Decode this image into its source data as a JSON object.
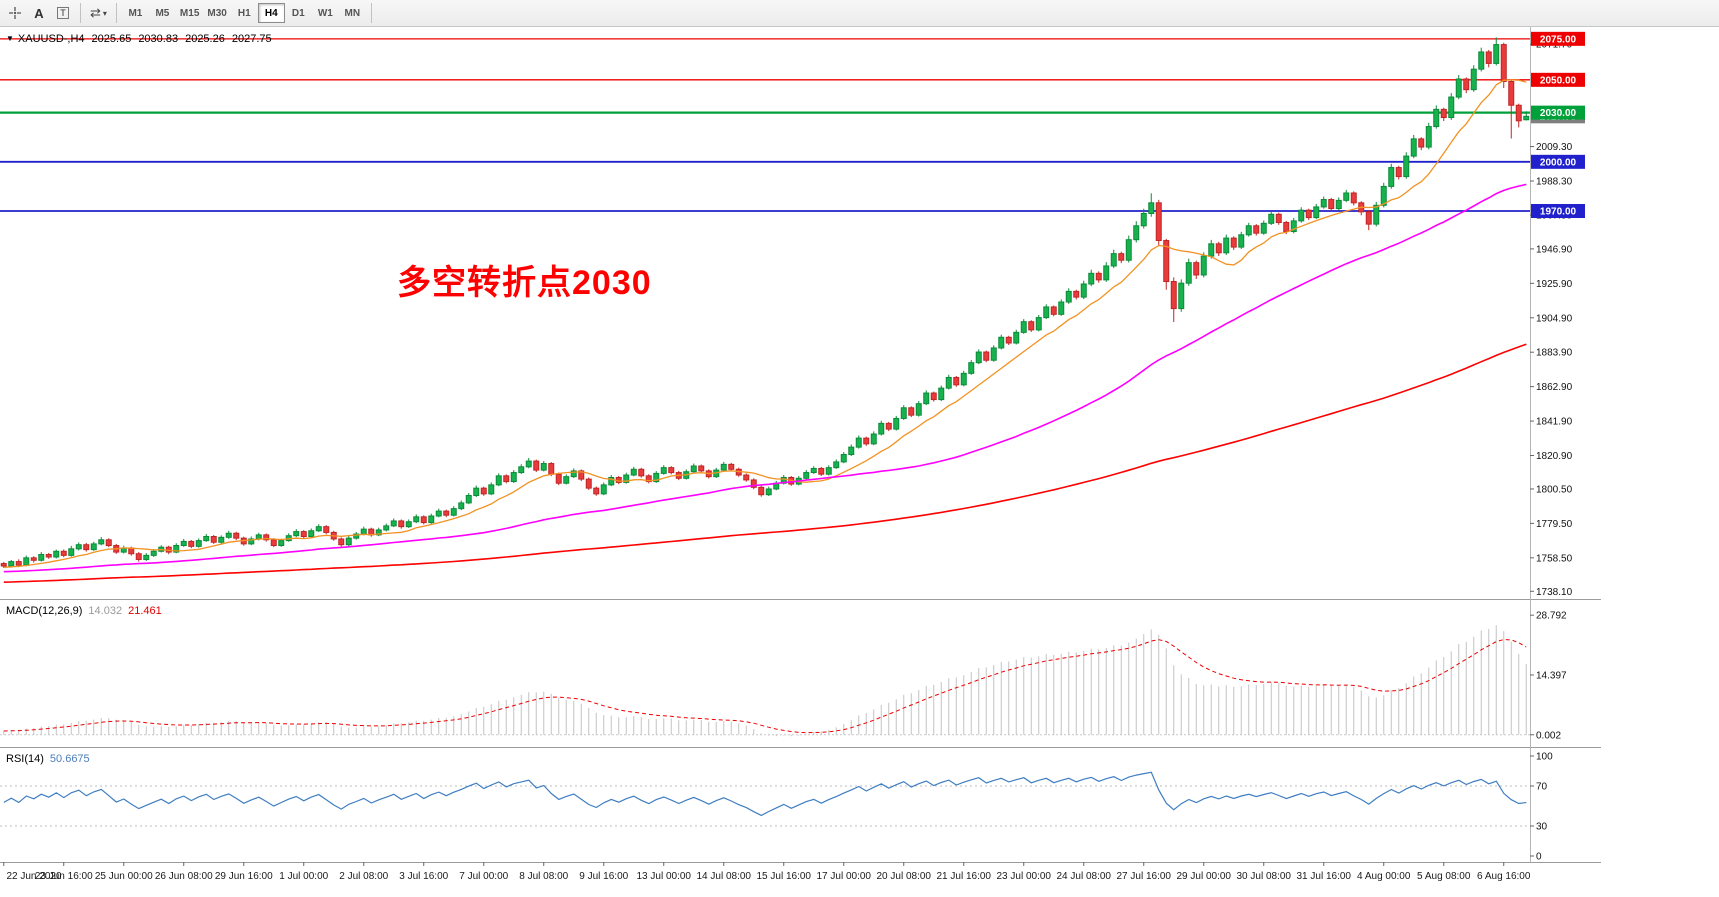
{
  "toolbar": {
    "tools": {
      "text_label": "A",
      "textbox_label": "T",
      "cycles_glyph": "⇄",
      "caret_glyph": "▾"
    },
    "timeframes": [
      "M1",
      "M5",
      "M15",
      "M30",
      "H1",
      "H4",
      "D1",
      "W1",
      "MN"
    ],
    "active_timeframe": "H4"
  },
  "chart": {
    "menu_arrow_glyph": "▼",
    "symbol_label": "XAUUSD-,H4",
    "ohlc": {
      "open": "2025.65",
      "high": "2030.83",
      "low": "2025.26",
      "close": "2027.75"
    },
    "annotation": {
      "text": "多空转折点2030",
      "color": "#ff0000"
    }
  },
  "indicators": {
    "macd": {
      "label": "MACD(12,26,9)",
      "value_main": "14.032",
      "value_signal": "21.461",
      "value_main_color": "#9a9a9a",
      "value_signal_color": "#e00000",
      "ticks": [
        "28.792",
        "14.397",
        "0.002"
      ]
    },
    "rsi": {
      "label": "RSI(14)",
      "value": "50.6675",
      "value_color": "#4a7ebb",
      "ticks": [
        "100",
        "70",
        "30",
        "0"
      ],
      "levels": [
        70,
        30
      ]
    }
  },
  "chart_data": {
    "type": "candlestick",
    "title": "XAUUSD-,H4",
    "symbol": "XAUUSD-",
    "timeframe": "H4",
    "price_axis": {
      "min": 1734,
      "max": 2081,
      "ticks": [
        "2071.70",
        "2009.30",
        "1988.30",
        "1967.50",
        "1946.90",
        "1925.90",
        "1904.90",
        "1883.90",
        "1862.90",
        "1841.90",
        "1820.90",
        "1800.50",
        "1779.50",
        "1758.50",
        "1738.10"
      ]
    },
    "time_labels": [
      "22 Jun 2020",
      "23 Jun 16:00",
      "25 Jun 00:00",
      "26 Jun 08:00",
      "29 Jun 16:00",
      "1 Jul 00:00",
      "2 Jul 08:00",
      "3 Jul 16:00",
      "7 Jul 00:00",
      "8 Jul 08:00",
      "9 Jul 16:00",
      "13 Jul 00:00",
      "14 Jul 08:00",
      "15 Jul 16:00",
      "17 Jul 00:00",
      "20 Jul 08:00",
      "21 Jul 16:00",
      "23 Jul 00:00",
      "24 Jul 08:00",
      "27 Jul 16:00",
      "29 Jul 00:00",
      "30 Jul 08:00",
      "31 Jul 16:00",
      "4 Aug 00:00",
      "5 Aug 08:00",
      "6 Aug 16:00"
    ],
    "bars_per_label": 8,
    "horizontal_lines": [
      {
        "price": 2075.0,
        "label": "2075.00",
        "color": "#ee0000",
        "width": 1.3
      },
      {
        "price": 2050.0,
        "label": "2050.00",
        "color": "#ee0000",
        "width": 1.3
      },
      {
        "price": 2030.0,
        "label": "2030.00",
        "color": "#00a13a",
        "width": 2.2
      },
      {
        "price": 2000.0,
        "label": "2000.00",
        "color": "#2020cc",
        "width": 1.8
      },
      {
        "price": 1970.0,
        "label": "1970.00",
        "color": "#2020cc",
        "width": 1.8
      }
    ],
    "current_price": "2027.75",
    "moving_averages": [
      {
        "period": 10,
        "color": "#f29222",
        "width": 1.3
      },
      {
        "period": 50,
        "color": "#ff00ff",
        "width": 1.6
      },
      {
        "period": 150,
        "color": "#ff0000",
        "width": 1.6
      }
    ],
    "history_seed": {
      "start": 1734,
      "end": 1753,
      "bars": 150,
      "jitter": 1.1
    },
    "colors": {
      "up_fill": "#17b24d",
      "up_stroke": "#0b8a39",
      "down_fill": "#e83c3c",
      "down_stroke": "#c02424",
      "macd_hist": "#c2c2c2",
      "macd_signal": "#ee0000",
      "rsi_line": "#3f7ec1",
      "bid_box": "#7f7f7f",
      "axis_text": "#111111"
    },
    "candles": [
      [
        1755.0,
        1756.0,
        1752.3,
        1753.5
      ],
      [
        1753.5,
        1757.2,
        1752.5,
        1756.2
      ],
      [
        1756.2,
        1757.6,
        1752.8,
        1754.0
      ],
      [
        1754.0,
        1759.9,
        1753.3,
        1758.5
      ],
      [
        1758.5,
        1759.5,
        1755.6,
        1757.0
      ],
      [
        1757.0,
        1762.0,
        1756.2,
        1760.5
      ],
      [
        1760.5,
        1761.5,
        1757.9,
        1759.0
      ],
      [
        1759.0,
        1763.5,
        1758.1,
        1762.5
      ],
      [
        1762.5,
        1763.6,
        1758.9,
        1760.0
      ],
      [
        1760.0,
        1765.8,
        1759.2,
        1764.0
      ],
      [
        1764.0,
        1767.9,
        1763.0,
        1766.5
      ],
      [
        1766.5,
        1767.6,
        1762.3,
        1763.5
      ],
      [
        1763.5,
        1768.3,
        1762.8,
        1767.0
      ],
      [
        1767.0,
        1771.2,
        1766.1,
        1769.5
      ],
      [
        1769.5,
        1770.4,
        1765.0,
        1766.0
      ],
      [
        1766.0,
        1767.0,
        1760.9,
        1762.0
      ],
      [
        1762.0,
        1765.9,
        1761.2,
        1764.5
      ],
      [
        1764.5,
        1765.3,
        1759.8,
        1761.0
      ],
      [
        1761.0,
        1762.0,
        1756.2,
        1757.5
      ],
      [
        1757.5,
        1761.4,
        1756.6,
        1760.0
      ],
      [
        1760.0,
        1763.9,
        1759.0,
        1762.5
      ],
      [
        1762.5,
        1766.2,
        1761.8,
        1765.0
      ],
      [
        1765.0,
        1765.9,
        1760.7,
        1762.0
      ],
      [
        1762.0,
        1767.4,
        1761.3,
        1766.0
      ],
      [
        1766.0,
        1770.0,
        1765.2,
        1768.5
      ],
      [
        1768.5,
        1769.4,
        1764.4,
        1765.5
      ],
      [
        1765.5,
        1770.3,
        1764.7,
        1769.0
      ],
      [
        1769.0,
        1773.0,
        1768.2,
        1771.5
      ],
      [
        1771.5,
        1772.4,
        1767.0,
        1768.0
      ],
      [
        1768.0,
        1772.2,
        1767.2,
        1771.0
      ],
      [
        1771.0,
        1775.0,
        1770.1,
        1773.5
      ],
      [
        1773.5,
        1774.4,
        1769.3,
        1770.5
      ],
      [
        1770.5,
        1771.4,
        1765.9,
        1767.0
      ],
      [
        1767.0,
        1771.5,
        1766.2,
        1770.0
      ],
      [
        1770.0,
        1773.8,
        1769.1,
        1772.5
      ],
      [
        1772.5,
        1773.4,
        1768.4,
        1769.5
      ],
      [
        1769.5,
        1770.5,
        1765.0,
        1766.0
      ],
      [
        1766.0,
        1770.2,
        1765.2,
        1769.0
      ],
      [
        1769.0,
        1773.5,
        1768.3,
        1772.0
      ],
      [
        1772.0,
        1776.0,
        1771.1,
        1774.5
      ],
      [
        1774.5,
        1775.4,
        1770.3,
        1771.5
      ],
      [
        1771.5,
        1776.4,
        1770.7,
        1775.0
      ],
      [
        1775.0,
        1779.0,
        1774.2,
        1777.5
      ],
      [
        1777.5,
        1778.4,
        1772.9,
        1774.0
      ],
      [
        1774.0,
        1775.0,
        1768.9,
        1770.0
      ],
      [
        1770.0,
        1771.0,
        1765.3,
        1766.5
      ],
      [
        1766.5,
        1771.9,
        1765.7,
        1770.5
      ],
      [
        1770.5,
        1774.3,
        1769.6,
        1773.0
      ],
      [
        1773.0,
        1777.5,
        1772.2,
        1776.0
      ],
      [
        1776.0,
        1776.9,
        1771.4,
        1772.5
      ],
      [
        1772.5,
        1776.9,
        1771.7,
        1775.5
      ],
      [
        1775.5,
        1779.4,
        1774.6,
        1778.0
      ],
      [
        1778.0,
        1782.5,
        1777.2,
        1781.0
      ],
      [
        1781.0,
        1781.9,
        1776.3,
        1777.5
      ],
      [
        1777.5,
        1781.9,
        1776.7,
        1780.5
      ],
      [
        1780.5,
        1785.0,
        1779.6,
        1783.5
      ],
      [
        1783.5,
        1784.4,
        1778.9,
        1780.0
      ],
      [
        1780.0,
        1785.4,
        1779.2,
        1784.0
      ],
      [
        1784.0,
        1788.5,
        1783.2,
        1787.0
      ],
      [
        1787.0,
        1787.9,
        1783.3,
        1784.5
      ],
      [
        1784.5,
        1790.0,
        1783.7,
        1788.5
      ],
      [
        1788.5,
        1793.5,
        1787.6,
        1792.0
      ],
      [
        1792.0,
        1798.0,
        1791.2,
        1796.5
      ],
      [
        1796.5,
        1802.6,
        1795.6,
        1801.0
      ],
      [
        1801.0,
        1801.9,
        1796.3,
        1797.5
      ],
      [
        1797.5,
        1804.5,
        1796.7,
        1803.0
      ],
      [
        1803.0,
        1810.0,
        1802.2,
        1808.5
      ],
      [
        1808.5,
        1809.4,
        1803.9,
        1805.0
      ],
      [
        1805.0,
        1812.0,
        1804.2,
        1810.5
      ],
      [
        1810.5,
        1815.6,
        1809.6,
        1814.0
      ],
      [
        1814.0,
        1819.4,
        1813.1,
        1817.5
      ],
      [
        1817.5,
        1818.4,
        1810.8,
        1812.0
      ],
      [
        1812.0,
        1817.5,
        1811.2,
        1816.0
      ],
      [
        1816.0,
        1816.9,
        1808.3,
        1809.5
      ],
      [
        1809.5,
        1810.5,
        1802.8,
        1804.0
      ],
      [
        1804.0,
        1809.4,
        1803.2,
        1808.0
      ],
      [
        1808.0,
        1813.0,
        1807.2,
        1811.5
      ],
      [
        1811.5,
        1812.4,
        1805.3,
        1806.5
      ],
      [
        1806.5,
        1807.5,
        1799.9,
        1801.0
      ],
      [
        1801.0,
        1802.0,
        1796.3,
        1797.5
      ],
      [
        1797.5,
        1804.4,
        1796.7,
        1803.0
      ],
      [
        1803.0,
        1809.0,
        1802.2,
        1807.5
      ],
      [
        1807.5,
        1808.4,
        1803.4,
        1804.5
      ],
      [
        1804.5,
        1810.4,
        1803.7,
        1809.0
      ],
      [
        1809.0,
        1814.0,
        1808.2,
        1812.5
      ],
      [
        1812.5,
        1813.4,
        1807.4,
        1808.5
      ],
      [
        1808.5,
        1809.5,
        1803.9,
        1805.0
      ],
      [
        1805.0,
        1811.4,
        1804.2,
        1810.0
      ],
      [
        1810.0,
        1815.0,
        1809.2,
        1813.5
      ],
      [
        1813.5,
        1814.4,
        1809.4,
        1810.5
      ],
      [
        1810.5,
        1811.5,
        1805.9,
        1807.0
      ],
      [
        1807.0,
        1812.4,
        1806.2,
        1811.0
      ],
      [
        1811.0,
        1816.0,
        1810.2,
        1814.5
      ],
      [
        1814.5,
        1815.4,
        1810.4,
        1811.5
      ],
      [
        1811.5,
        1812.5,
        1806.9,
        1808.0
      ],
      [
        1808.0,
        1813.4,
        1807.2,
        1812.0
      ],
      [
        1812.0,
        1817.0,
        1811.2,
        1815.5
      ],
      [
        1815.5,
        1816.4,
        1811.4,
        1812.5
      ],
      [
        1812.5,
        1813.5,
        1807.9,
        1809.0
      ],
      [
        1809.0,
        1810.0,
        1804.9,
        1806.0
      ],
      [
        1806.0,
        1807.0,
        1800.3,
        1801.5
      ],
      [
        1801.5,
        1802.5,
        1795.8,
        1797.0
      ],
      [
        1797.0,
        1801.9,
        1796.2,
        1800.5
      ],
      [
        1800.5,
        1805.4,
        1799.7,
        1804.0
      ],
      [
        1804.0,
        1809.0,
        1803.2,
        1807.5
      ],
      [
        1807.5,
        1808.4,
        1802.4,
        1803.5
      ],
      [
        1803.5,
        1808.4,
        1802.7,
        1807.0
      ],
      [
        1807.0,
        1812.0,
        1806.2,
        1810.5
      ],
      [
        1810.5,
        1814.4,
        1809.7,
        1813.0
      ],
      [
        1813.0,
        1813.9,
        1808.4,
        1809.5
      ],
      [
        1809.5,
        1814.9,
        1808.7,
        1813.5
      ],
      [
        1813.5,
        1818.5,
        1812.7,
        1817.0
      ],
      [
        1817.0,
        1823.0,
        1816.2,
        1821.5
      ],
      [
        1821.5,
        1827.6,
        1820.6,
        1826.0
      ],
      [
        1826.0,
        1833.1,
        1825.1,
        1831.5
      ],
      [
        1831.5,
        1832.4,
        1826.8,
        1828.0
      ],
      [
        1828.0,
        1835.6,
        1827.2,
        1834.0
      ],
      [
        1834.0,
        1842.1,
        1833.1,
        1840.5
      ],
      [
        1840.5,
        1841.4,
        1835.8,
        1837.0
      ],
      [
        1837.0,
        1845.1,
        1836.1,
        1843.5
      ],
      [
        1843.5,
        1851.6,
        1842.6,
        1850.0
      ],
      [
        1850.0,
        1850.9,
        1844.3,
        1845.5
      ],
      [
        1845.5,
        1854.1,
        1844.6,
        1852.5
      ],
      [
        1852.5,
        1860.6,
        1851.6,
        1859.0
      ],
      [
        1859.0,
        1859.9,
        1853.8,
        1855.0
      ],
      [
        1855.0,
        1863.6,
        1854.1,
        1862.0
      ],
      [
        1862.0,
        1870.1,
        1861.1,
        1868.5
      ],
      [
        1868.5,
        1869.4,
        1862.8,
        1864.0
      ],
      [
        1864.0,
        1872.6,
        1863.1,
        1871.0
      ],
      [
        1871.0,
        1879.1,
        1870.1,
        1877.5
      ],
      [
        1877.5,
        1885.6,
        1876.6,
        1884.0
      ],
      [
        1884.0,
        1884.9,
        1877.8,
        1879.0
      ],
      [
        1879.0,
        1888.1,
        1878.1,
        1886.5
      ],
      [
        1886.5,
        1894.6,
        1885.6,
        1893.0
      ],
      [
        1893.0,
        1893.9,
        1888.3,
        1889.5
      ],
      [
        1889.5,
        1897.6,
        1888.6,
        1896.0
      ],
      [
        1896.0,
        1904.1,
        1895.1,
        1902.5
      ],
      [
        1902.5,
        1903.4,
        1896.3,
        1897.5
      ],
      [
        1897.5,
        1906.6,
        1896.6,
        1905.0
      ],
      [
        1905.0,
        1913.1,
        1904.1,
        1911.5
      ],
      [
        1911.5,
        1912.4,
        1905.8,
        1907.0
      ],
      [
        1907.0,
        1916.1,
        1906.1,
        1914.5
      ],
      [
        1914.5,
        1922.9,
        1913.4,
        1921.0
      ],
      [
        1921.0,
        1922.0,
        1916.0,
        1917.5
      ],
      [
        1917.5,
        1927.5,
        1916.3,
        1925.5
      ],
      [
        1925.5,
        1934.2,
        1924.2,
        1932.0
      ],
      [
        1932.0,
        1933.2,
        1926.3,
        1928.0
      ],
      [
        1928.0,
        1938.8,
        1926.8,
        1936.5
      ],
      [
        1936.5,
        1946.4,
        1935.2,
        1944.0
      ],
      [
        1944.0,
        1945.2,
        1938.2,
        1940.0
      ],
      [
        1940.0,
        1955.0,
        1938.6,
        1952.5
      ],
      [
        1952.5,
        1963.8,
        1950.8,
        1961.0
      ],
      [
        1961.0,
        1971.4,
        1959.3,
        1968.5
      ],
      [
        1968.5,
        1980.8,
        1966.5,
        1975.0
      ],
      [
        1975.0,
        1976.8,
        1948.5,
        1952.0
      ],
      [
        1952.0,
        1953.0,
        1922.0,
        1927.0
      ],
      [
        1927.0,
        1929.5,
        1902.3,
        1910.5
      ],
      [
        1910.5,
        1928.3,
        1908.6,
        1926.0
      ],
      [
        1926.0,
        1941.0,
        1924.4,
        1938.5
      ],
      [
        1938.5,
        1939.8,
        1928.6,
        1931.0
      ],
      [
        1931.0,
        1944.8,
        1929.5,
        1942.5
      ],
      [
        1942.5,
        1952.4,
        1941.0,
        1950.0
      ],
      [
        1950.0,
        1951.2,
        1942.6,
        1944.5
      ],
      [
        1944.5,
        1955.6,
        1943.2,
        1953.5
      ],
      [
        1953.5,
        1954.6,
        1946.3,
        1948.0
      ],
      [
        1948.0,
        1957.3,
        1946.9,
        1955.5
      ],
      [
        1955.5,
        1962.8,
        1954.4,
        1961.0
      ],
      [
        1961.0,
        1962.0,
        1955.0,
        1956.5
      ],
      [
        1956.5,
        1964.2,
        1955.5,
        1962.5
      ],
      [
        1962.5,
        1969.9,
        1961.5,
        1968.0
      ],
      [
        1968.0,
        1969.0,
        1961.6,
        1963.0
      ],
      [
        1963.0,
        1964.0,
        1955.9,
        1957.5
      ],
      [
        1957.5,
        1965.8,
        1956.4,
        1964.0
      ],
      [
        1964.0,
        1972.3,
        1962.9,
        1970.5
      ],
      [
        1970.5,
        1971.4,
        1964.5,
        1966.0
      ],
      [
        1966.0,
        1974.3,
        1965.1,
        1972.5
      ],
      [
        1972.5,
        1978.8,
        1971.4,
        1977.0
      ],
      [
        1977.0,
        1978.0,
        1969.9,
        1971.5
      ],
      [
        1971.5,
        1978.3,
        1970.4,
        1976.5
      ],
      [
        1976.5,
        1982.9,
        1975.4,
        1981.0
      ],
      [
        1981.0,
        1982.0,
        1973.4,
        1975.0
      ],
      [
        1975.0,
        1976.0,
        1967.4,
        1969.5
      ],
      [
        1969.5,
        1970.5,
        1958.3,
        1962.0
      ],
      [
        1962.0,
        1975.6,
        1960.6,
        1973.5
      ],
      [
        1973.5,
        1987.2,
        1972.2,
        1985.0
      ],
      [
        1985.0,
        1998.8,
        1983.6,
        1996.5
      ],
      [
        1996.5,
        1997.6,
        1989.2,
        1991.0
      ],
      [
        1991.0,
        2005.8,
        1989.6,
        2003.5
      ],
      [
        2003.5,
        2016.4,
        2002.2,
        2014.0
      ],
      [
        2014.0,
        2015.0,
        2007.1,
        2009.0
      ],
      [
        2009.0,
        2023.8,
        2007.6,
        2021.5
      ],
      [
        2021.5,
        2034.4,
        2020.2,
        2032.0
      ],
      [
        2032.0,
        2033.0,
        2024.9,
        2027.0
      ],
      [
        2027.0,
        2041.9,
        2025.6,
        2039.5
      ],
      [
        2039.5,
        2052.9,
        2038.2,
        2050.5
      ],
      [
        2050.5,
        2051.5,
        2041.9,
        2044.0
      ],
      [
        2044.0,
        2058.9,
        2042.7,
        2056.5
      ],
      [
        2056.5,
        2069.6,
        2055.1,
        2067.0
      ],
      [
        2067.0,
        2068.2,
        2057.6,
        2060.0
      ],
      [
        2060.0,
        2075.9,
        2058.8,
        2071.5
      ],
      [
        2071.5,
        2072.6,
        2045.0,
        2049.0
      ],
      [
        2049.0,
        2050.0,
        2014.2,
        2034.5
      ],
      [
        2034.5,
        2035.5,
        2021.0,
        2025.0
      ],
      [
        2025.65,
        2030.83,
        2025.26,
        2027.75
      ]
    ]
  }
}
